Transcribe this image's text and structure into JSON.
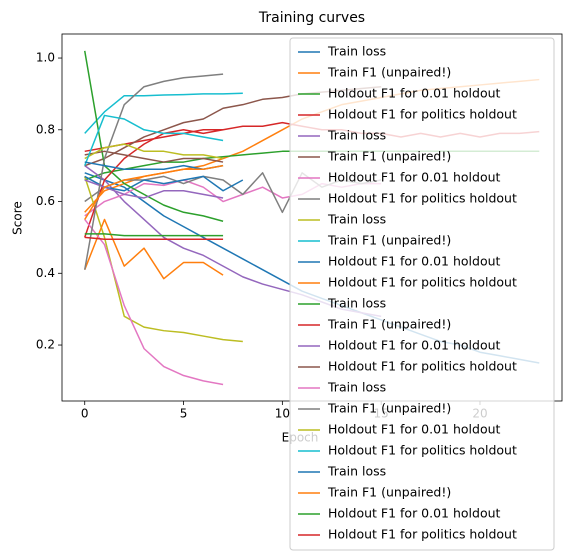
{
  "chart_data": {
    "type": "line",
    "title": "Training curves",
    "x_label": "Epoch",
    "y_label": "Score",
    "x": [
      0,
      1,
      2,
      3,
      4,
      5,
      6,
      7,
      8,
      9,
      10,
      11,
      12,
      13,
      14,
      15,
      16,
      17,
      18,
      19,
      20,
      21,
      22,
      23
    ],
    "xlim": [
      -1.15,
      24.15
    ],
    "ylim": [
      0.044,
      1.067
    ],
    "xticks": [
      0,
      5,
      10,
      15,
      20
    ],
    "yticks": [
      0.2,
      0.4,
      0.6,
      0.8,
      {
        "value": 1,
        "label": "1.0"
      }
    ],
    "legend": "upper right",
    "series": [
      {
        "name": "Train loss",
        "color": "#1f77b4",
        "values": [
          0.68,
          0.66,
          0.64,
          0.6,
          0.56,
          0.53,
          0.5,
          0.47,
          0.44,
          0.41,
          0.38,
          0.35,
          0.33,
          0.31,
          0.29,
          0.27,
          0.25,
          0.23,
          0.21,
          0.2,
          0.18,
          0.17,
          0.16,
          0.15
        ]
      },
      {
        "name": "Train F1 (unpaired!)",
        "color": "#ff7f0e",
        "values": [
          0.57,
          0.63,
          0.65,
          0.67,
          0.68,
          0.69,
          0.7,
          0.72,
          0.74,
          0.77,
          0.8,
          0.83,
          0.85,
          0.87,
          0.88,
          0.89,
          0.9,
          0.91,
          0.915,
          0.92,
          0.925,
          0.93,
          0.935,
          0.94
        ]
      },
      {
        "name": "Holdout F1 for 0.01 holdout",
        "color": "#2ca02c",
        "values": [
          0.66,
          0.68,
          0.69,
          0.7,
          0.71,
          0.71,
          0.72,
          0.725,
          0.73,
          0.735,
          0.74,
          0.74,
          0.74,
          0.74,
          0.74,
          0.74,
          0.74,
          0.74,
          0.74,
          0.74,
          0.74,
          0.74,
          0.74,
          0.74
        ]
      },
      {
        "name": "Holdout F1 for politics holdout",
        "color": "#d62728",
        "values": [
          0.74,
          0.75,
          0.76,
          0.77,
          0.78,
          0.79,
          0.8,
          0.8,
          0.81,
          0.81,
          0.82,
          0.81,
          0.8,
          0.8,
          0.79,
          0.79,
          0.78,
          0.79,
          0.78,
          0.79,
          0.78,
          0.79,
          0.79,
          0.795
        ]
      },
      {
        "name": "Train loss",
        "color": "#9467bd",
        "values": [
          0.7,
          0.66,
          0.6,
          0.55,
          0.5,
          0.47,
          0.45,
          0.42,
          0.39,
          0.37,
          0.355,
          0.34,
          0.32,
          0.3,
          0.29,
          0.28,
          null,
          null,
          null,
          null,
          null,
          null,
          null,
          null
        ]
      },
      {
        "name": "Train F1 (unpaired!)",
        "color": "#8c564b",
        "values": [
          0.7,
          0.72,
          0.75,
          0.78,
          0.8,
          0.82,
          0.83,
          0.86,
          0.87,
          0.885,
          0.89,
          0.9,
          0.905,
          0.91,
          0.915,
          0.92,
          null,
          null,
          null,
          null,
          null,
          null,
          null,
          null
        ]
      },
      {
        "name": "Holdout F1 for 0.01 holdout",
        "color": "#e377c2",
        "values": [
          0.56,
          0.6,
          0.62,
          0.65,
          0.645,
          0.66,
          0.64,
          0.6,
          0.62,
          0.64,
          0.61,
          0.62,
          0.65,
          0.64,
          0.65,
          0.65,
          null,
          null,
          null,
          null,
          null,
          null,
          null,
          null
        ]
      },
      {
        "name": "Holdout F1 for politics holdout",
        "color": "#7f7f7f",
        "values": [
          0.6,
          0.64,
          0.66,
          0.66,
          0.67,
          0.65,
          0.67,
          0.66,
          0.62,
          0.68,
          0.57,
          0.68,
          0.64,
          0.66,
          0.65,
          0.66,
          null,
          null,
          null,
          null,
          null,
          null,
          null,
          null
        ]
      },
      {
        "name": "Train loss",
        "color": "#bcbd22",
        "values": [
          0.67,
          0.5,
          0.28,
          0.25,
          0.24,
          0.235,
          0.225,
          0.215,
          0.21,
          null,
          null,
          null,
          null,
          null,
          null,
          null,
          null,
          null,
          null,
          null,
          null,
          null,
          null,
          null
        ]
      },
      {
        "name": "Train F1 (unpaired!)",
        "color": "#17becf",
        "values": [
          0.79,
          0.85,
          0.895,
          0.895,
          0.897,
          0.898,
          0.9,
          0.9,
          0.902,
          null,
          null,
          null,
          null,
          null,
          null,
          null,
          null,
          null,
          null,
          null,
          null,
          null,
          null,
          null
        ]
      },
      {
        "name": "Holdout F1 for 0.01 holdout",
        "color": "#1f77b4",
        "values": [
          0.67,
          0.64,
          0.63,
          0.66,
          0.65,
          0.66,
          0.67,
          0.63,
          0.66,
          null,
          null,
          null,
          null,
          null,
          null,
          null,
          null,
          null,
          null,
          null,
          null,
          null,
          null,
          null
        ]
      },
      {
        "name": "Holdout F1 for politics holdout",
        "color": "#ff7f0e",
        "values": [
          0.41,
          0.55,
          0.42,
          0.47,
          0.385,
          0.43,
          0.43,
          0.395,
          null,
          null,
          null,
          null,
          null,
          null,
          null,
          null,
          null,
          null,
          null,
          null,
          null,
          null,
          null,
          null
        ]
      },
      {
        "name": "Train loss",
        "color": "#2ca02c",
        "values": [
          1.02,
          0.7,
          0.65,
          0.62,
          0.59,
          0.57,
          0.56,
          0.545,
          null,
          null,
          null,
          null,
          null,
          null,
          null,
          null,
          null,
          null,
          null,
          null,
          null,
          null,
          null,
          null
        ]
      },
      {
        "name": "Train F1 (unpaired!)",
        "color": "#d62728",
        "values": [
          0.5,
          0.66,
          0.72,
          0.76,
          0.79,
          0.8,
          0.79,
          0.8,
          null,
          null,
          null,
          null,
          null,
          null,
          null,
          null,
          null,
          null,
          null,
          null,
          null,
          null,
          null,
          null
        ]
      },
      {
        "name": "Holdout F1 for 0.01 holdout",
        "color": "#9467bd",
        "values": [
          0.66,
          0.64,
          0.62,
          0.61,
          0.63,
          0.63,
          0.62,
          0.61,
          null,
          null,
          null,
          null,
          null,
          null,
          null,
          null,
          null,
          null,
          null,
          null,
          null,
          null,
          null,
          null
        ]
      },
      {
        "name": "Holdout F1 for politics holdout",
        "color": "#8c564b",
        "values": [
          0.73,
          0.74,
          0.73,
          0.72,
          0.71,
          0.72,
          0.72,
          0.71,
          null,
          null,
          null,
          null,
          null,
          null,
          null,
          null,
          null,
          null,
          null,
          null,
          null,
          null,
          null,
          null
        ]
      },
      {
        "name": "Train loss",
        "color": "#e377c2",
        "values": [
          0.55,
          0.48,
          0.31,
          0.19,
          0.14,
          0.115,
          0.1,
          0.09,
          null,
          null,
          null,
          null,
          null,
          null,
          null,
          null,
          null,
          null,
          null,
          null,
          null,
          null,
          null,
          null
        ]
      },
      {
        "name": "Train F1 (unpaired!)",
        "color": "#7f7f7f",
        "values": [
          0.41,
          0.72,
          0.87,
          0.92,
          0.935,
          0.945,
          0.95,
          0.955,
          null,
          null,
          null,
          null,
          null,
          null,
          null,
          null,
          null,
          null,
          null,
          null,
          null,
          null,
          null,
          null
        ]
      },
      {
        "name": "Holdout F1 for 0.01 holdout",
        "color": "#bcbd22",
        "values": [
          0.72,
          0.75,
          0.76,
          0.74,
          0.74,
          0.73,
          0.73,
          0.72,
          null,
          null,
          null,
          null,
          null,
          null,
          null,
          null,
          null,
          null,
          null,
          null,
          null,
          null,
          null,
          null
        ]
      },
      {
        "name": "Holdout F1 for politics holdout",
        "color": "#17becf",
        "values": [
          0.7,
          0.84,
          0.83,
          0.8,
          0.79,
          0.79,
          0.78,
          0.77,
          null,
          null,
          null,
          null,
          null,
          null,
          null,
          null,
          null,
          null,
          null,
          null,
          null,
          null,
          null,
          null
        ]
      },
      {
        "name": "Train loss",
        "color": "#1f77b4",
        "values": [
          0.71,
          0.7,
          0.69,
          0.69,
          0.69,
          0.7,
          0.69,
          0.7,
          null,
          null,
          null,
          null,
          null,
          null,
          null,
          null,
          null,
          null,
          null,
          null,
          null,
          null,
          null,
          null
        ]
      },
      {
        "name": "Train F1 (unpaired!)",
        "color": "#ff7f0e",
        "values": [
          0.55,
          0.64,
          0.66,
          0.67,
          0.68,
          0.69,
          0.69,
          0.7,
          null,
          null,
          null,
          null,
          null,
          null,
          null,
          null,
          null,
          null,
          null,
          null,
          null,
          null,
          null,
          null
        ]
      },
      {
        "name": "Holdout F1 for 0.01 holdout",
        "color": "#2ca02c",
        "values": [
          0.51,
          0.51,
          0.505,
          0.505,
          0.505,
          0.505,
          0.505,
          0.505,
          null,
          null,
          null,
          null,
          null,
          null,
          null,
          null,
          null,
          null,
          null,
          null,
          null,
          null,
          null,
          null
        ]
      },
      {
        "name": "Holdout F1 for politics holdout",
        "color": "#d62728",
        "values": [
          0.5,
          0.495,
          0.495,
          0.495,
          0.495,
          0.495,
          0.495,
          0.495,
          null,
          null,
          null,
          null,
          null,
          null,
          null,
          null,
          null,
          null,
          null,
          null,
          null,
          null,
          null,
          null
        ]
      }
    ]
  }
}
